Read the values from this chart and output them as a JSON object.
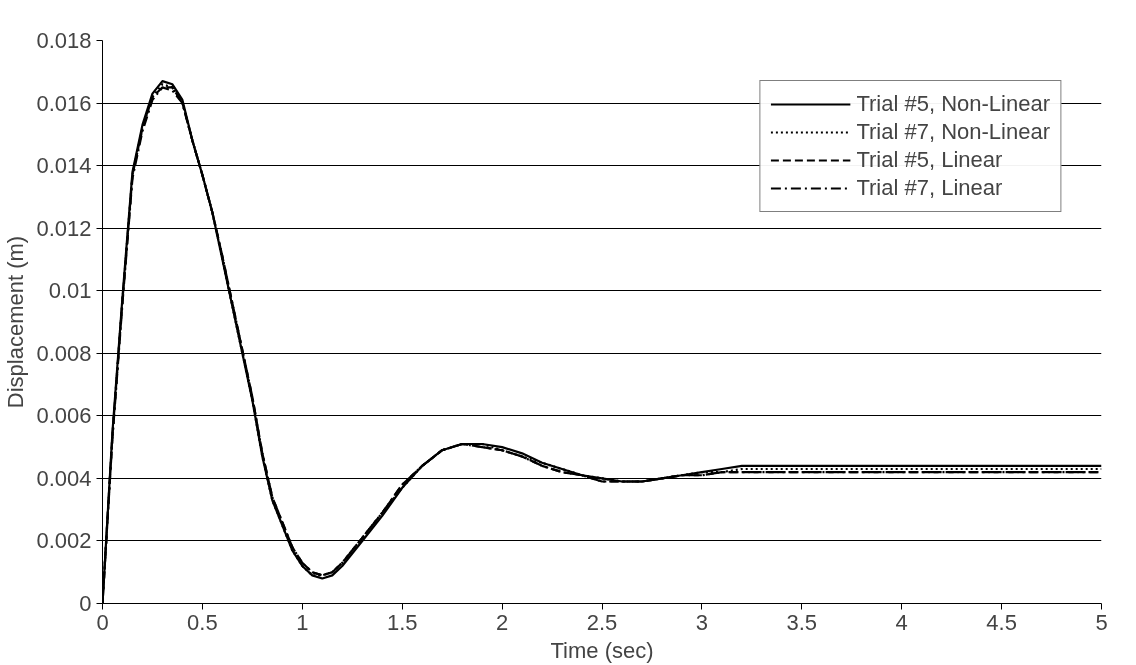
{
  "chart_data": {
    "type": "line",
    "xlabel": "Time (sec)",
    "ylabel": "Displacement (m)",
    "x": [
      0,
      0.05,
      0.1,
      0.15,
      0.2,
      0.25,
      0.3,
      0.35,
      0.4,
      0.45,
      0.5,
      0.55,
      0.6,
      0.65,
      0.7,
      0.75,
      0.8,
      0.85,
      0.9,
      0.95,
      1.0,
      1.05,
      1.1,
      1.15,
      1.2,
      1.3,
      1.4,
      1.5,
      1.6,
      1.7,
      1.8,
      1.9,
      2.0,
      2.1,
      2.2,
      2.3,
      2.4,
      2.5,
      2.6,
      2.7,
      2.8,
      2.9,
      3.0,
      3.1,
      3.2,
      3.5,
      4.0,
      4.5,
      5.0
    ],
    "series": [
      {
        "name": "Trial #5, Non-Linear",
        "color": "#000000",
        "line_style": "solid",
        "values": [
          0,
          0.0055,
          0.0098,
          0.0138,
          0.0153,
          0.0163,
          0.0167,
          0.0166,
          0.0161,
          0.0148,
          0.0137,
          0.0125,
          0.011,
          0.0095,
          0.008,
          0.0065,
          0.0047,
          0.0033,
          0.0025,
          0.0017,
          0.0012,
          0.0009,
          0.0008,
          0.0009,
          0.0012,
          0.002,
          0.0028,
          0.0037,
          0.0044,
          0.0049,
          0.0051,
          0.0051,
          0.005,
          0.0048,
          0.0045,
          0.0043,
          0.0041,
          0.004,
          0.0039,
          0.0039,
          0.004,
          0.0041,
          0.0042,
          0.0043,
          0.0044,
          0.0044,
          0.0044,
          0.0044,
          0.0044
        ]
      },
      {
        "name": "Trial #7, Non-Linear",
        "color": "#000000",
        "line_style": "dotted",
        "values": [
          0,
          0.0054,
          0.0097,
          0.0137,
          0.0152,
          0.0162,
          0.0166,
          0.0165,
          0.016,
          0.0148,
          0.0137,
          0.0125,
          0.011,
          0.0095,
          0.008,
          0.0065,
          0.0047,
          0.0033,
          0.0025,
          0.0017,
          0.0012,
          0.0009,
          0.0009,
          0.001,
          0.0013,
          0.0021,
          0.0029,
          0.0037,
          0.0044,
          0.0049,
          0.0051,
          0.0051,
          0.0049,
          0.0047,
          0.0045,
          0.0043,
          0.0041,
          0.004,
          0.0039,
          0.0039,
          0.004,
          0.0041,
          0.0042,
          0.0042,
          0.0043,
          0.0043,
          0.0043,
          0.0043,
          0.0043
        ]
      },
      {
        "name": "Trial #5, Linear",
        "color": "#000000",
        "line_style": "dashed",
        "values": [
          0,
          0.0054,
          0.0097,
          0.0137,
          0.0152,
          0.0162,
          0.0165,
          0.0165,
          0.016,
          0.0148,
          0.0137,
          0.0125,
          0.0111,
          0.0096,
          0.0081,
          0.0066,
          0.0048,
          0.0034,
          0.0026,
          0.0018,
          0.0013,
          0.001,
          0.0009,
          0.001,
          0.0013,
          0.0021,
          0.0029,
          0.0038,
          0.0044,
          0.0049,
          0.0051,
          0.005,
          0.0049,
          0.0047,
          0.0044,
          0.0042,
          0.0041,
          0.0039,
          0.0039,
          0.0039,
          0.004,
          0.0041,
          0.0041,
          0.0042,
          0.0042,
          0.0042,
          0.0042,
          0.0042,
          0.0042
        ]
      },
      {
        "name": "Trial #7, Linear",
        "color": "#000000",
        "line_style": "dashdot",
        "values": [
          0,
          0.0053,
          0.0096,
          0.0136,
          0.0151,
          0.0161,
          0.0165,
          0.0164,
          0.016,
          0.0148,
          0.0137,
          0.0125,
          0.0111,
          0.0096,
          0.0081,
          0.0066,
          0.0048,
          0.0034,
          0.0026,
          0.0018,
          0.0013,
          0.001,
          0.0009,
          0.001,
          0.0013,
          0.0021,
          0.0029,
          0.0038,
          0.0044,
          0.0049,
          0.0051,
          0.005,
          0.0049,
          0.0047,
          0.0044,
          0.0042,
          0.0041,
          0.0039,
          0.0039,
          0.0039,
          0.004,
          0.0041,
          0.0041,
          0.0042,
          0.0042,
          0.0042,
          0.0042,
          0.0042,
          0.0042
        ]
      }
    ],
    "xlim": [
      0,
      5
    ],
    "xticks": [
      0,
      0.5,
      1,
      1.5,
      2,
      2.5,
      3,
      3.5,
      4,
      4.5,
      5
    ],
    "ylim": [
      0,
      0.018
    ],
    "yticks": [
      0,
      0.002,
      0.004,
      0.006,
      0.008,
      0.01,
      0.012,
      0.014,
      0.016,
      0.018
    ],
    "grid": "y",
    "legend": "top right",
    "marker": "none"
  }
}
